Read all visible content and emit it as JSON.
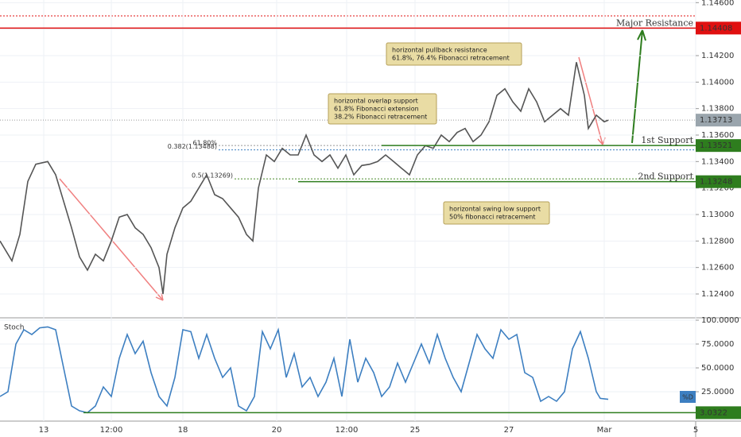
{
  "chart_data": [
    {
      "type": "line",
      "color": "#555555",
      "x": [
        0,
        3,
        5,
        7,
        9,
        12,
        14,
        16,
        18,
        20,
        22,
        24,
        26,
        28,
        30,
        32,
        34,
        36,
        38,
        40,
        41,
        42,
        44,
        46,
        48,
        50,
        52,
        54,
        56,
        58,
        60,
        62,
        63.6,
        65,
        67,
        69,
        71,
        73,
        75,
        77,
        79,
        81,
        83,
        85,
        87,
        89,
        91,
        93,
        95,
        97,
        99,
        101,
        103,
        105,
        107,
        109,
        111,
        113,
        115,
        117,
        119,
        121,
        123,
        125,
        127,
        129,
        131,
        133,
        135,
        137,
        139,
        141,
        143,
        145,
        147,
        148,
        150,
        152,
        153
      ],
      "values": [
        1.128,
        1.1265,
        1.1285,
        1.1325,
        1.1338,
        1.134,
        1.133,
        1.131,
        1.129,
        1.1268,
        1.1258,
        1.127,
        1.1265,
        1.128,
        1.1298,
        1.13,
        1.129,
        1.1285,
        1.1275,
        1.126,
        1.124,
        1.127,
        1.129,
        1.1305,
        1.131,
        1.132,
        1.133,
        1.1315,
        1.1312,
        1.1305,
        1.1298,
        1.1285,
        1.128,
        1.132,
        1.1345,
        1.134,
        1.135,
        1.1345,
        1.1345,
        1.136,
        1.1345,
        1.134,
        1.1345,
        1.1335,
        1.1345,
        1.133,
        1.1337,
        1.1338,
        1.134,
        1.1345,
        1.134,
        1.1335,
        1.133,
        1.1345,
        1.1352,
        1.135,
        1.136,
        1.1355,
        1.1362,
        1.1365,
        1.1355,
        1.136,
        1.137,
        1.139,
        1.1395,
        1.1385,
        1.1378,
        1.1395,
        1.1385,
        1.137,
        1.1375,
        1.138,
        1.1375,
        1.1415,
        1.139,
        1.1365,
        1.1375,
        1.137,
        1.13713
      ],
      "xlim": [
        0,
        175
      ],
      "xticks": [
        {
          "value": 11,
          "label": "13"
        },
        {
          "value": 28,
          "label": "12:00"
        },
        {
          "value": 46,
          "label": "18"
        },
        {
          "value": 69.6,
          "label": "20"
        },
        {
          "value": 87.2,
          "label": "12:00"
        },
        {
          "value": 104.4,
          "label": "25"
        },
        {
          "value": 128,
          "label": "27"
        },
        {
          "value": 152,
          "label": "Mar"
        },
        {
          "value": 175,
          "label": "5"
        }
      ],
      "ylim": [
        1.1222,
        1.1462
      ],
      "yticks": [
        {
          "value": 1.146,
          "label": "1.14600"
        },
        {
          "value": 1.144,
          "label": "1.14400"
        },
        {
          "value": 1.142,
          "label": "1.14200"
        },
        {
          "value": 1.14,
          "label": "1.14000"
        },
        {
          "value": 1.138,
          "label": "1.13800"
        },
        {
          "value": 1.136,
          "label": "1.13600"
        },
        {
          "value": 1.134,
          "label": "1.13400"
        },
        {
          "value": 1.132,
          "label": "1.13200"
        },
        {
          "value": 1.13,
          "label": "1.13000"
        },
        {
          "value": 1.128,
          "label": "1.12800"
        },
        {
          "value": 1.126,
          "label": "1.12600"
        },
        {
          "value": 1.124,
          "label": "1.12400"
        }
      ],
      "grid": true,
      "last_value": 1.13713,
      "levels": [
        {
          "label": "Major Resistance",
          "value": 1.14408,
          "color": "#e01010"
        },
        {
          "label": "1st Support",
          "value": 1.13521,
          "color": "#2e7d1e"
        },
        {
          "label": "2nd Support",
          "value": 1.13248,
          "color": "#2e7d1e"
        }
      ],
      "fib": [
        {
          "label": "61.80%",
          "value": 1.13521,
          "color": "#999999"
        },
        {
          "label": "0.382(1.13488)",
          "value": 1.13488,
          "color": "#3d7fc1"
        },
        {
          "label": "0.5(1.13269)",
          "value": 1.13269,
          "color": "#4a8a2a"
        }
      ],
      "annotations": [
        [
          "horizontal pullback resistance",
          "61.8%, 76.4% Fibonacci retracement"
        ],
        [
          "horizontal overlap support",
          "61.8% Fibonacci extension",
          "38.2% Fibonacci retracement"
        ],
        [
          "horizontal swing low support",
          "50% fibonacci retracement"
        ]
      ]
    },
    {
      "type": "line",
      "title": "Stoch",
      "legend": "%D",
      "color": "#3d7fc1",
      "x": [
        0,
        2,
        4,
        6,
        8,
        10,
        12,
        14,
        16,
        18,
        20,
        22,
        24,
        26,
        28,
        30,
        32,
        34,
        36,
        38,
        40,
        42,
        44,
        46,
        48,
        50,
        52,
        54,
        56,
        58,
        60,
        62,
        64,
        66,
        68,
        70,
        72,
        74,
        76,
        78,
        80,
        82,
        84,
        86,
        88,
        90,
        92,
        94,
        96,
        98,
        100,
        102,
        104,
        106,
        108,
        110,
        112,
        114,
        116,
        118,
        120,
        122,
        124,
        126,
        128,
        130,
        132,
        134,
        136,
        138,
        140,
        142,
        144,
        146,
        148,
        150,
        151,
        153
      ],
      "values": [
        20,
        25,
        75,
        90,
        85,
        92,
        93,
        90,
        50,
        10,
        5,
        3,
        10,
        30,
        20,
        60,
        85,
        65,
        78,
        45,
        20,
        10,
        40,
        90,
        88,
        60,
        85,
        60,
        40,
        50,
        10,
        5,
        20,
        88,
        70,
        90,
        40,
        65,
        30,
        40,
        20,
        35,
        60,
        20,
        80,
        35,
        60,
        45,
        20,
        30,
        55,
        35,
        55,
        75,
        55,
        85,
        60,
        40,
        25,
        55,
        85,
        70,
        60,
        90,
        80,
        85,
        45,
        40,
        15,
        20,
        15,
        25,
        70,
        88,
        60,
        25,
        18,
        17
      ],
      "ylim": [
        -5.8,
        102.5
      ],
      "yticks": [
        {
          "value": 100,
          "label": "100.0000"
        },
        {
          "value": 75,
          "label": "75.0000"
        },
        {
          "value": 50,
          "label": "50.0000"
        },
        {
          "value": 25,
          "label": "25.0000"
        }
      ],
      "level": 3.0322,
      "level_color": "#2e7d1e"
    }
  ]
}
